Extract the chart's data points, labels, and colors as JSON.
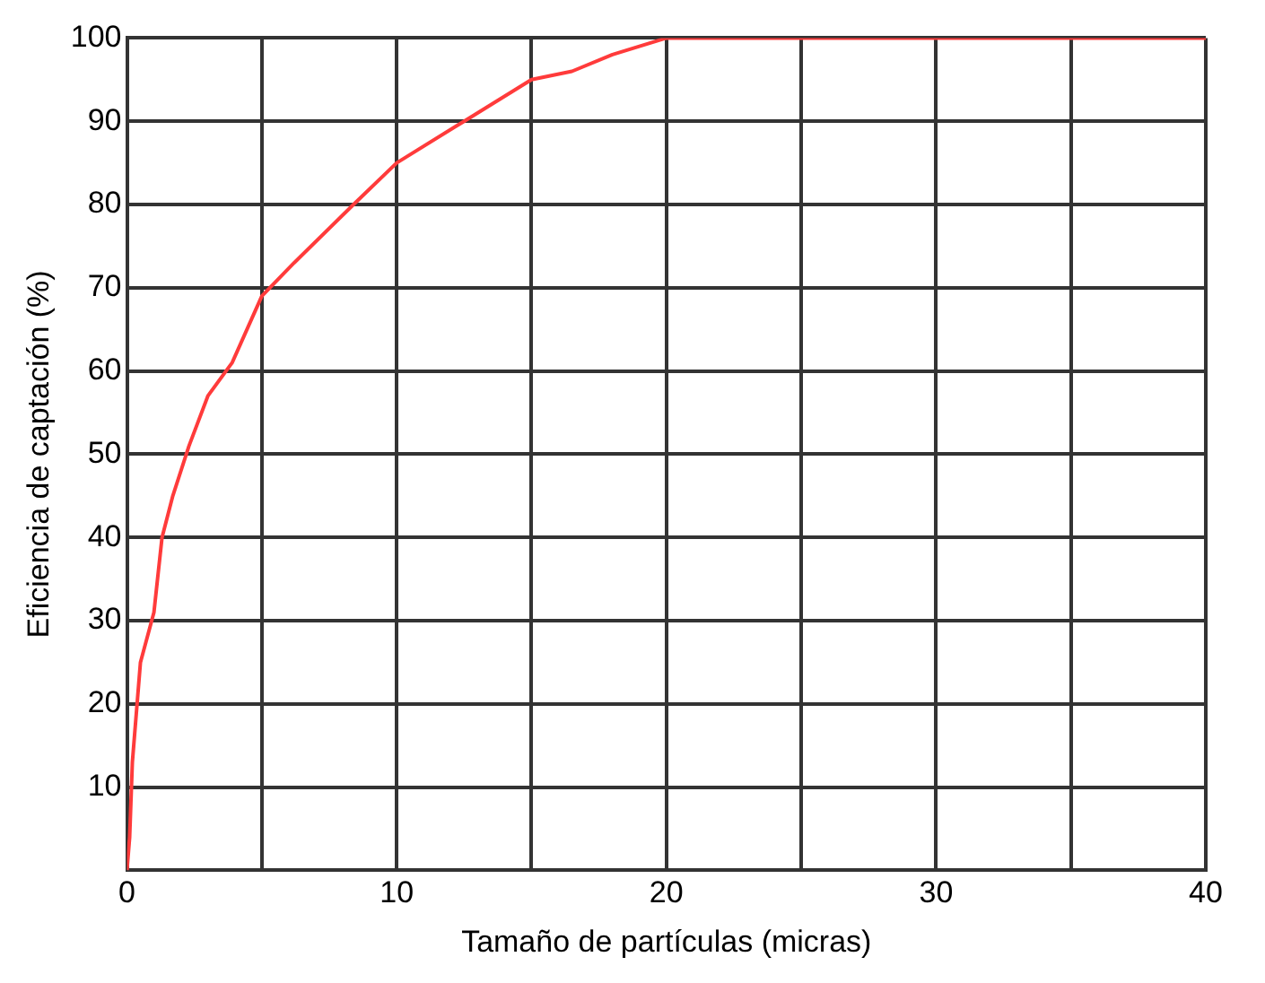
{
  "chart_data": {
    "type": "line",
    "xlabel": "Tamaño de partículas (micras)",
    "ylabel": "Eficiencia de captación (%)",
    "series": [
      {
        "color": "#ff3b3b",
        "x": [
          0,
          0.1,
          0.2,
          0.5,
          1,
          1.3,
          1.7,
          2.3,
          3,
          3.9,
          5,
          6.2,
          8.4,
          10,
          12.5,
          15,
          16.5,
          18,
          20,
          21,
          40
        ],
        "values": [
          0,
          4,
          13,
          25,
          31,
          40,
          45,
          51,
          57,
          61,
          69,
          73,
          80,
          85,
          90,
          95,
          96,
          98,
          100,
          100,
          100
        ]
      }
    ],
    "xlim": [
      0,
      40
    ],
    "xticks": [
      0,
      {
        "value": 5,
        "label": null
      },
      10,
      {
        "value": 15,
        "label": null
      },
      20,
      {
        "value": 25,
        "label": null
      },
      30,
      {
        "value": 35,
        "label": null
      },
      40
    ],
    "ylim": [
      0,
      100
    ],
    "yticks": [
      {
        "value": 0,
        "label": null
      },
      10,
      20,
      30,
      40,
      50,
      60,
      70,
      80,
      90,
      100
    ],
    "grid": true,
    "legend": false,
    "marker": "none",
    "line_style": "solid"
  }
}
